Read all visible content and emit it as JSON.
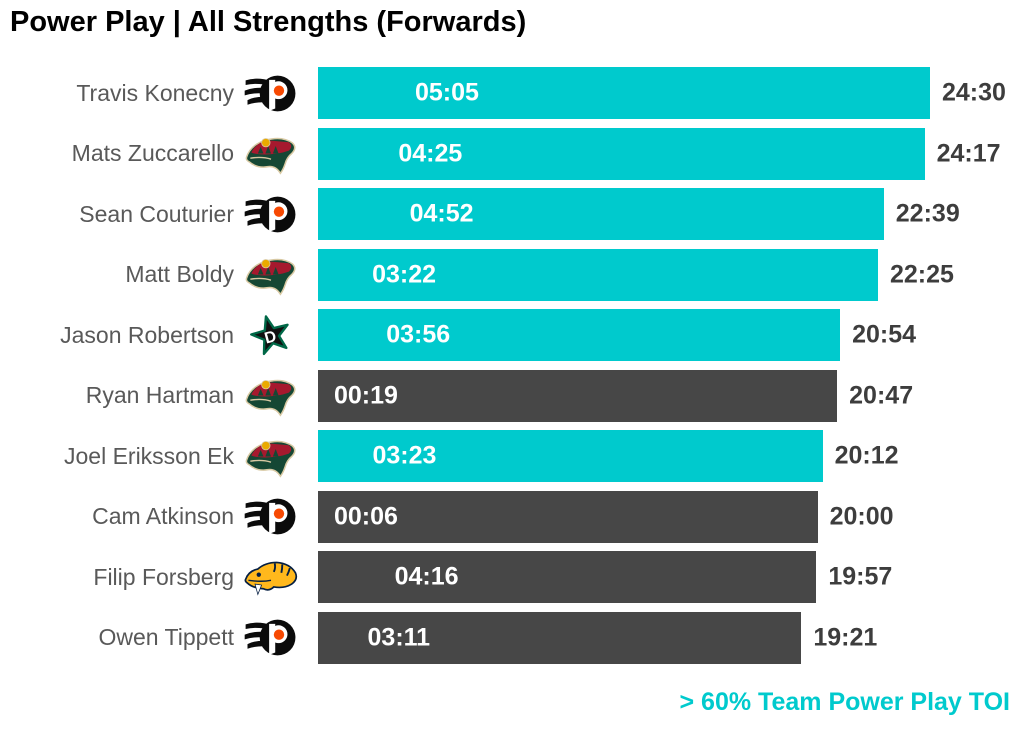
{
  "title": "Power Play | All Strengths (Forwards)",
  "legend_note": "> 60% Team Power Play TOI",
  "colors": {
    "highlight_teal": "#00CACD",
    "regular_dark": "#474747",
    "total_label_text": "#3d3d3d",
    "player_name_text": "#595959",
    "bar_inner_text": "#ffffff",
    "title_text": "#000000"
  },
  "chart_data": {
    "type": "bar",
    "orientation": "horizontal",
    "title": "Power Play | All Strengths (Forwards)",
    "legend": {
      "highlight_color_meaning": "> 60% Team Power Play TOI",
      "position": "bottom-right"
    },
    "axis_max_toi": "24:30",
    "bar_length_metric": "total_toi",
    "rows": [
      {
        "player": "Travis Konecny",
        "team": "PHI",
        "icon": "flyers-logo-icon",
        "pp_toi": "05:05",
        "total_toi": "24:30",
        "highlighted": true
      },
      {
        "player": "Mats Zuccarello",
        "team": "MIN",
        "icon": "wild-logo-icon",
        "pp_toi": "04:25",
        "total_toi": "24:17",
        "highlighted": true
      },
      {
        "player": "Sean Couturier",
        "team": "PHI",
        "icon": "flyers-logo-icon",
        "pp_toi": "04:52",
        "total_toi": "22:39",
        "highlighted": true
      },
      {
        "player": "Matt Boldy",
        "team": "MIN",
        "icon": "wild-logo-icon",
        "pp_toi": "03:22",
        "total_toi": "22:25",
        "highlighted": true
      },
      {
        "player": "Jason Robertson",
        "team": "DAL",
        "icon": "stars-logo-icon",
        "pp_toi": "03:56",
        "total_toi": "20:54",
        "highlighted": true
      },
      {
        "player": "Ryan Hartman",
        "team": "MIN",
        "icon": "wild-logo-icon",
        "pp_toi": "00:19",
        "total_toi": "20:47",
        "highlighted": false
      },
      {
        "player": "Joel Eriksson Ek",
        "team": "MIN",
        "icon": "wild-logo-icon",
        "pp_toi": "03:23",
        "total_toi": "20:12",
        "highlighted": true
      },
      {
        "player": "Cam Atkinson",
        "team": "PHI",
        "icon": "flyers-logo-icon",
        "pp_toi": "00:06",
        "total_toi": "20:00",
        "highlighted": false
      },
      {
        "player": "Filip Forsberg",
        "team": "NSH",
        "icon": "predators-logo-icon",
        "pp_toi": "04:16",
        "total_toi": "19:57",
        "highlighted": false
      },
      {
        "player": "Owen Tippett",
        "team": "PHI",
        "icon": "flyers-logo-icon",
        "pp_toi": "03:11",
        "total_toi": "19:21",
        "highlighted": false
      }
    ]
  }
}
